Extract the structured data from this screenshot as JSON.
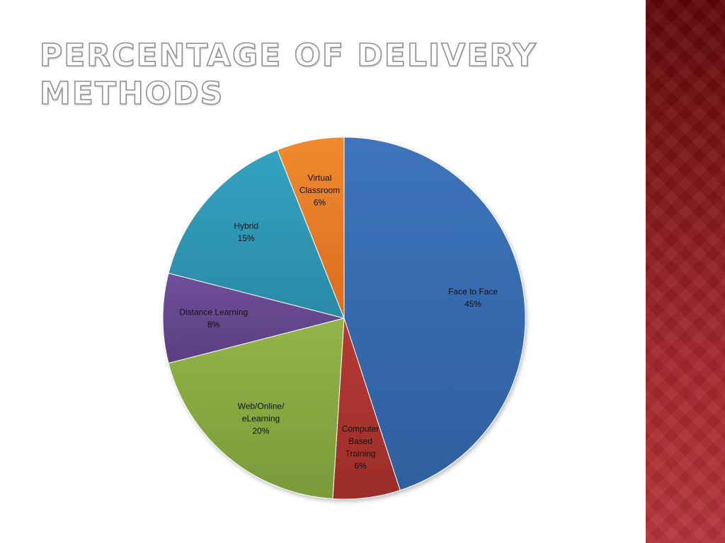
{
  "slide": {
    "title": "Percentage of Delivery Methods"
  },
  "colors": {
    "sidebar": "#8b1a1c"
  },
  "chart_data": {
    "type": "pie",
    "title": "",
    "slices": [
      {
        "label_lines": [
          "Face to Face"
        ],
        "value": 45,
        "value_label": "45%",
        "color": "#2f5f9e",
        "color_light": "#3d74bb"
      },
      {
        "label_lines": [
          "Computer",
          "Based",
          "Training"
        ],
        "value": 6,
        "value_label": "6%",
        "color": "#9b2d2a",
        "color_light": "#b73a35"
      },
      {
        "label_lines": [
          "Web/Online/",
          "eLearning"
        ],
        "value": 20,
        "value_label": "20%",
        "color": "#7a9a3a",
        "color_light": "#92b547"
      },
      {
        "label_lines": [
          "Distance Learning"
        ],
        "value": 8,
        "value_label": "8%",
        "color": "#5a3f7e",
        "color_light": "#704f9c"
      },
      {
        "label_lines": [
          "Hybrid"
        ],
        "value": 15,
        "value_label": "15%",
        "color": "#2a8aa6",
        "color_light": "#34a2c2"
      },
      {
        "label_lines": [
          "Virtual",
          "Classroom"
        ],
        "value": 6,
        "value_label": "6%",
        "color": "#db6c1f",
        "color_light": "#f08a2e"
      }
    ]
  }
}
